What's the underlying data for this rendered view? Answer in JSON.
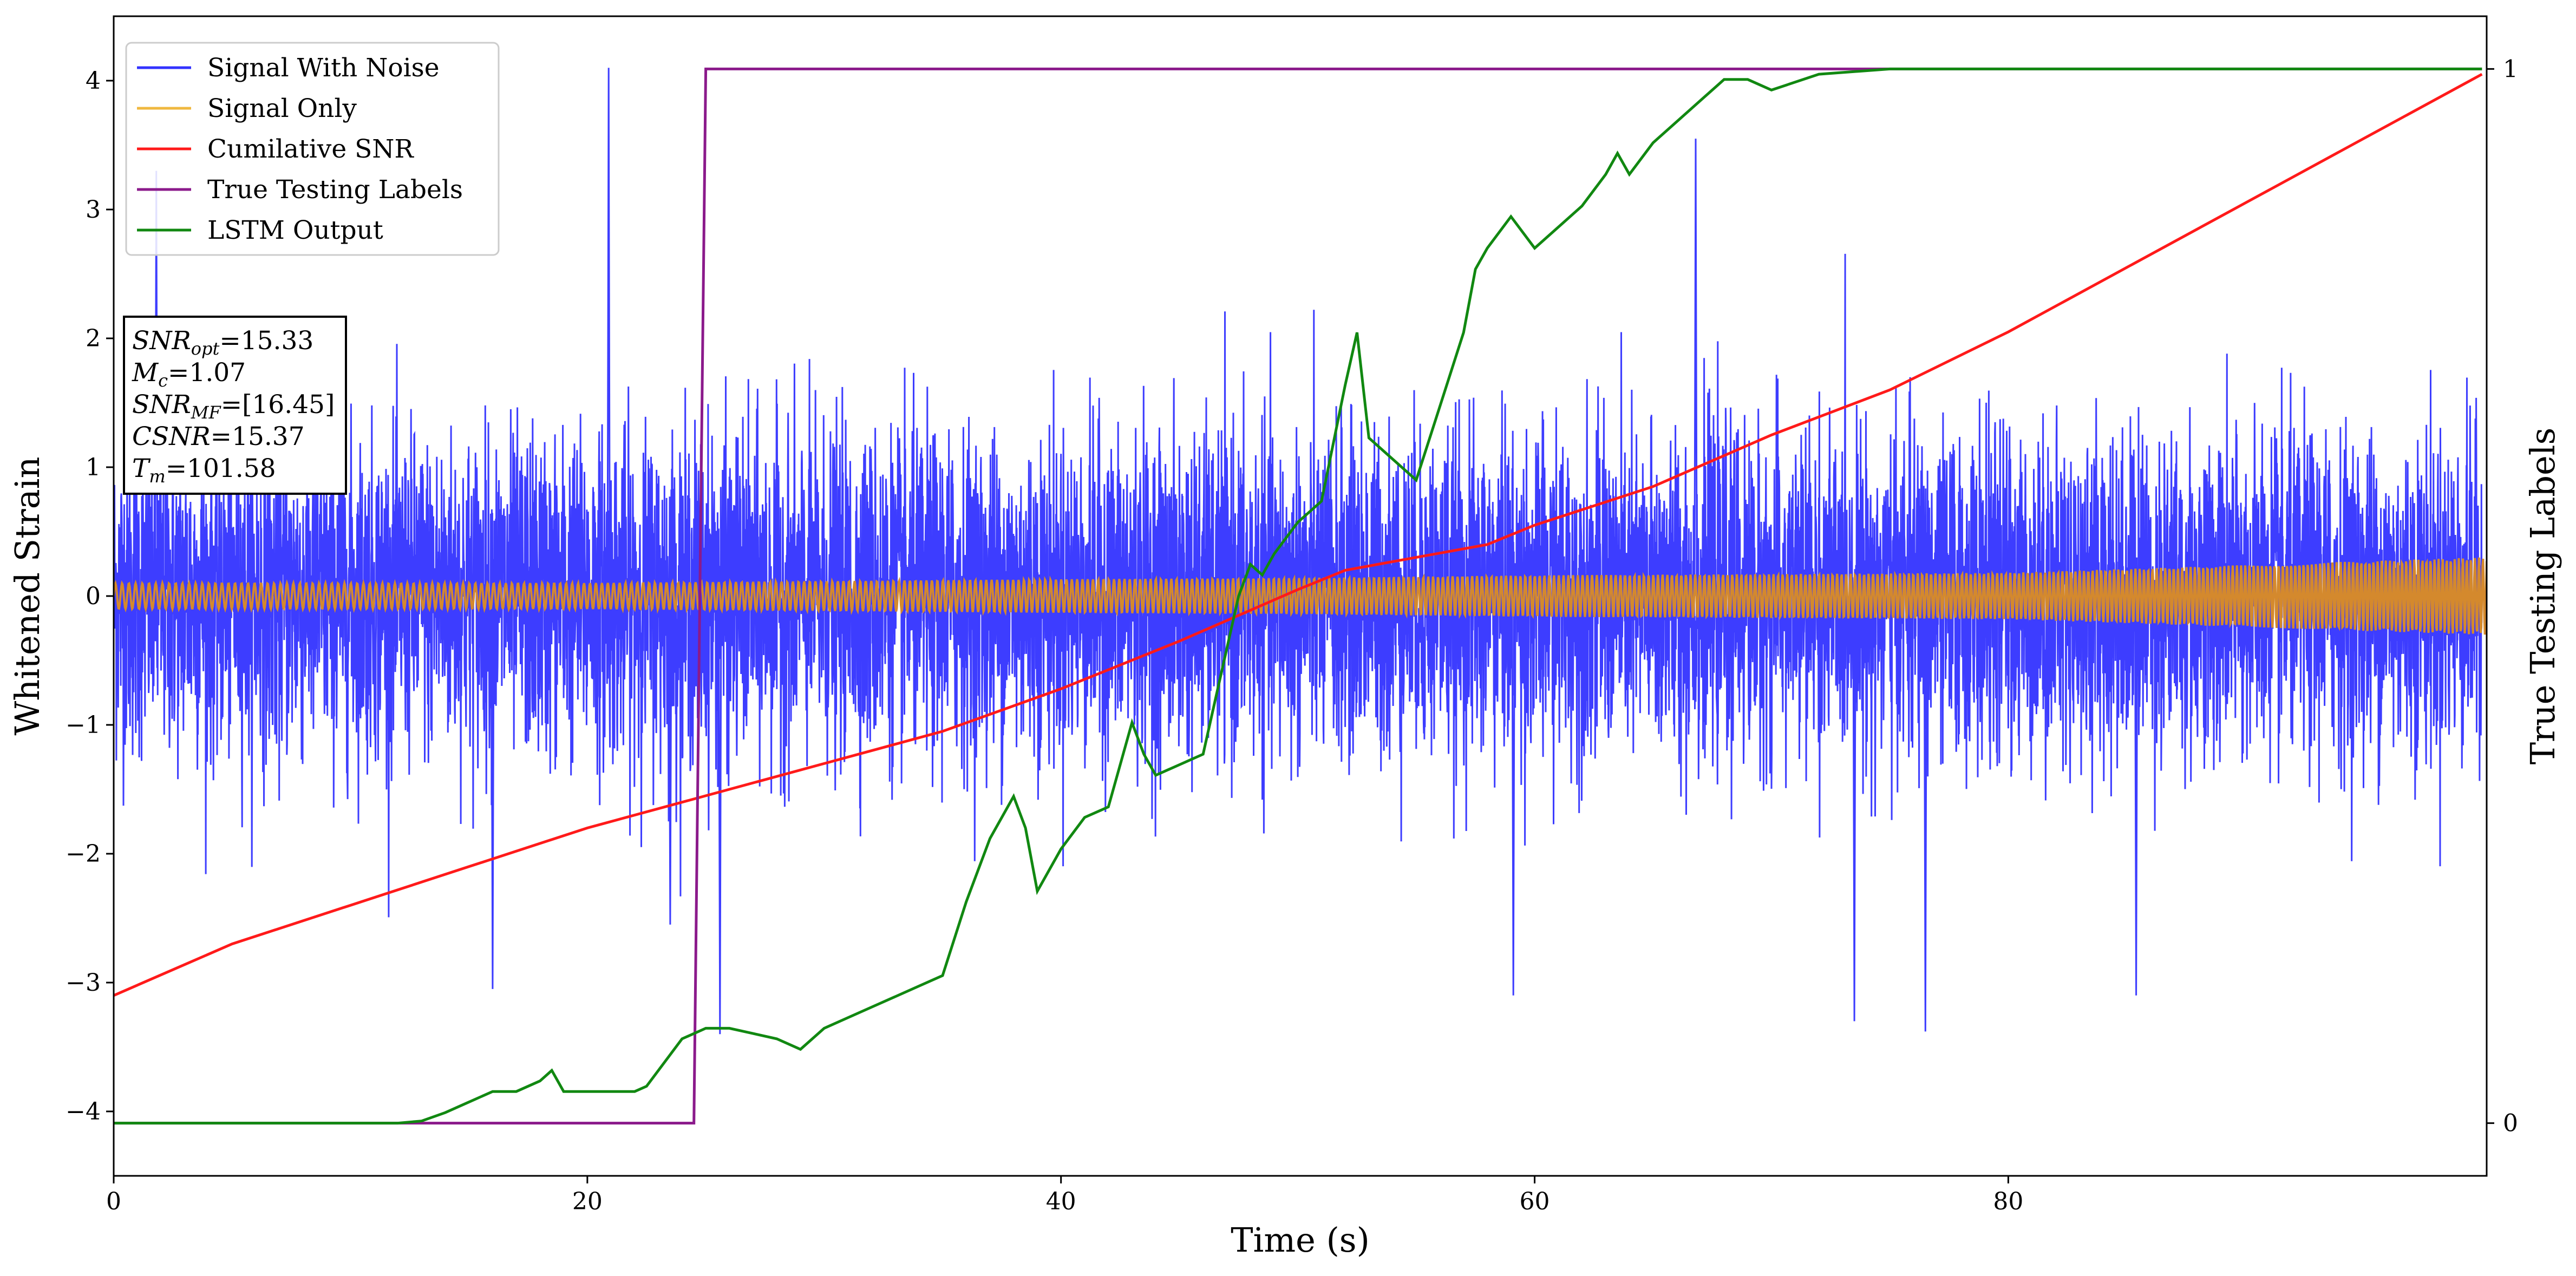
{
  "chart_data": {
    "type": "line",
    "title": "",
    "xlabel": "Time (s)",
    "ylabel": "Whitened Strain",
    "y2label": "True Testing Labels",
    "xlim": [
      0,
      100.2
    ],
    "ylim": [
      -4.5,
      4.5
    ],
    "y2lim": [
      -0.05,
      1.05
    ],
    "x_ticks": [
      0,
      20,
      40,
      60,
      80
    ],
    "y_ticks": [
      -4,
      -3,
      -2,
      -1,
      0,
      1,
      2,
      3,
      4
    ],
    "y2_ticks": [
      0,
      1
    ],
    "grid": false,
    "legend": {
      "placement": "upper-left",
      "entries": [
        {
          "label": "Signal With Noise",
          "color": "#3333ff"
        },
        {
          "label": "Signal Only",
          "color": "#f0b840"
        },
        {
          "label": "Cumilative SNR",
          "color": "#ff1a1a"
        },
        {
          "label": "True Testing Labels",
          "color": "#8b1a8b"
        },
        {
          "label": "LSTM Output",
          "color": "#118811"
        }
      ]
    },
    "annotation_lines": [
      {
        "sym": "SNR",
        "sub": "opt",
        "value": "=15.33"
      },
      {
        "sym": "M",
        "sub": "c",
        "value": "=1.07"
      },
      {
        "sym": "SNR",
        "sub": "MF",
        "value": "=[16.45]"
      },
      {
        "sym": "CSNR",
        "sub": "",
        "value": "=15.37"
      },
      {
        "sym": "T",
        "sub": "m",
        "value": "=101.58"
      }
    ],
    "series": [
      {
        "name": "Signal With Noise",
        "axis": "left",
        "color": "#3333ff",
        "style": "dense-noise",
        "envelope": {
          "typical_upper": 2.0,
          "typical_lower": -2.0,
          "max": 4.1,
          "min": -3.4
        },
        "spikes": [
          [
            20.9,
            4.1
          ],
          [
            66.8,
            3.55
          ],
          [
            1.8,
            3.3
          ],
          [
            23.5,
            -2.55
          ],
          [
            25.6,
            -3.4
          ],
          [
            59.1,
            -3.1
          ],
          [
            73.5,
            -3.3
          ],
          [
            76.5,
            -3.38
          ],
          [
            85.4,
            -3.1
          ],
          [
            16.0,
            -3.05
          ]
        ]
      },
      {
        "name": "Signal Only",
        "axis": "left",
        "color": "#d4892d",
        "style": "chirp-band",
        "amplitude": [
          [
            0,
            0.1
          ],
          [
            20,
            0.1
          ],
          [
            40,
            0.13
          ],
          [
            50,
            0.14
          ],
          [
            60,
            0.16
          ],
          [
            80,
            0.18
          ],
          [
            100,
            0.3
          ]
        ]
      },
      {
        "name": "Cumilative SNR",
        "axis": "left",
        "color": "#ff1a1a",
        "x": [
          0,
          5,
          10,
          15,
          20,
          25,
          30,
          35,
          40,
          45,
          50,
          52,
          55,
          58,
          60,
          65,
          70,
          75,
          80,
          85,
          90,
          95,
          100
        ],
        "y": [
          -3.1,
          -2.7,
          -2.4,
          -2.1,
          -1.8,
          -1.55,
          -1.3,
          -1.05,
          -0.72,
          -0.35,
          0.05,
          0.2,
          0.3,
          0.4,
          0.55,
          0.85,
          1.25,
          1.6,
          2.05,
          2.55,
          3.05,
          3.55,
          4.05
        ]
      },
      {
        "name": "True Testing Labels",
        "axis": "right",
        "color": "#8b1a8b",
        "x": [
          0,
          24.5,
          25.0,
          100
        ],
        "y": [
          0,
          0,
          1,
          1
        ]
      },
      {
        "name": "LSTM Output",
        "axis": "right",
        "color": "#118811",
        "x": [
          0,
          12,
          13,
          14,
          15,
          16,
          17,
          18,
          18.5,
          19,
          20,
          21,
          22,
          22.5,
          23,
          24,
          25,
          26,
          27,
          28,
          29,
          30,
          31,
          32,
          33,
          34,
          35,
          36,
          37,
          38,
          38.5,
          39,
          40,
          41,
          42,
          43,
          43.5,
          44,
          45,
          46,
          46.5,
          47,
          47.5,
          48,
          48.5,
          49,
          50,
          51,
          52,
          52.5,
          53,
          54,
          55,
          56,
          57,
          57.5,
          58,
          59,
          60,
          61,
          62,
          63,
          63.5,
          64,
          65,
          66,
          67,
          68,
          69,
          70,
          72,
          75,
          80,
          100
        ],
        "y": [
          0,
          0,
          0.002,
          0.01,
          0.02,
          0.03,
          0.03,
          0.04,
          0.05,
          0.03,
          0.03,
          0.03,
          0.03,
          0.035,
          0.05,
          0.08,
          0.09,
          0.09,
          0.085,
          0.08,
          0.07,
          0.09,
          0.1,
          0.11,
          0.12,
          0.13,
          0.14,
          0.21,
          0.27,
          0.31,
          0.28,
          0.22,
          0.26,
          0.29,
          0.3,
          0.38,
          0.35,
          0.33,
          0.34,
          0.35,
          0.4,
          0.45,
          0.5,
          0.53,
          0.52,
          0.54,
          0.57,
          0.59,
          0.7,
          0.75,
          0.65,
          0.63,
          0.61,
          0.68,
          0.75,
          0.81,
          0.83,
          0.86,
          0.83,
          0.85,
          0.87,
          0.9,
          0.92,
          0.9,
          0.93,
          0.95,
          0.97,
          0.99,
          0.99,
          0.98,
          0.995,
          1.0,
          1.0,
          1.0
        ]
      }
    ]
  }
}
